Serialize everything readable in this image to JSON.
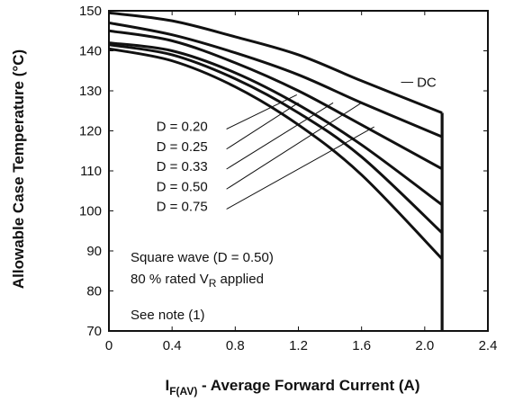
{
  "chart_data": {
    "type": "line",
    "x_axis": {
      "label_main": "I",
      "label_sub": "F(AV)",
      "label_rest": " - Average Forward Current (A)",
      "range": [
        0,
        2.4
      ],
      "ticks": [
        "0",
        "0.4",
        "0.8",
        "1.2",
        "1.6",
        "2.0",
        "2.4"
      ],
      "tick_values": [
        0,
        0.4,
        0.8,
        1.2,
        1.6,
        2.0,
        2.4
      ]
    },
    "y_axis": {
      "label": "Allowable Case Temperature (°C)",
      "range": [
        70,
        150
      ],
      "ticks": [
        "70",
        "80",
        "90",
        "100",
        "110",
        "120",
        "130",
        "140",
        "150"
      ],
      "tick_values": [
        70,
        80,
        90,
        100,
        110,
        120,
        130,
        140,
        150
      ]
    },
    "grid": false,
    "cutoff_current": 2.11,
    "series": [
      {
        "name": "DC",
        "x": [
          0,
          0.4,
          0.8,
          1.2,
          1.6,
          2.11
        ],
        "y": [
          149.5,
          147.5,
          143.5,
          139,
          132.5,
          124.5
        ]
      },
      {
        "name": "D = 0.20",
        "x": [
          0,
          0.4,
          0.8,
          1.2,
          1.6,
          2.11
        ],
        "y": [
          147,
          144,
          139.5,
          134,
          127,
          118.5
        ]
      },
      {
        "name": "D = 0.25",
        "x": [
          0,
          0.4,
          0.8,
          1.2,
          1.6,
          2.11
        ],
        "y": [
          145,
          142.5,
          137,
          130,
          121.5,
          110.5
        ]
      },
      {
        "name": "D = 0.33",
        "x": [
          0,
          0.4,
          0.8,
          1.2,
          1.6,
          2.11
        ],
        "y": [
          142,
          140,
          134.5,
          126.5,
          116.5,
          101.5
        ]
      },
      {
        "name": "D = 0.50",
        "x": [
          0,
          0.4,
          0.8,
          1.2,
          1.6,
          2.11
        ],
        "y": [
          141.5,
          139,
          133,
          124.5,
          113.5,
          94.5
        ]
      },
      {
        "name": "D = 0.75",
        "x": [
          0,
          0.4,
          0.8,
          1.2,
          1.6,
          2.11
        ],
        "y": [
          140.5,
          137.5,
          131,
          121.5,
          109,
          88
        ]
      }
    ],
    "series_labels": [
      {
        "text": "DC",
        "pos": [
          1.95,
          131
        ],
        "target": [
          1.85,
          131
        ]
      },
      {
        "text": "D = 0.20",
        "pos": [
          0.3,
          120
        ],
        "target": [
          1.19,
          129
        ]
      },
      {
        "text": "D = 0.25",
        "pos": [
          0.3,
          115
        ],
        "target": [
          1.2,
          127
        ]
      },
      {
        "text": "D = 0.33",
        "pos": [
          0.3,
          110
        ],
        "target": [
          1.42,
          127
        ]
      },
      {
        "text": "D = 0.50",
        "pos": [
          0.3,
          105
        ],
        "target": [
          1.6,
          127
        ]
      },
      {
        "text": "D = 0.75",
        "pos": [
          0.3,
          100
        ],
        "target": [
          1.68,
          121
        ]
      }
    ],
    "annotations": {
      "line1": "Square wave (D = 0.50)",
      "line2_main": "80 % rated V",
      "line2_sub": "R",
      "line2_rest": " applied",
      "line3": "See note (1)"
    },
    "line_color": "#111111"
  }
}
